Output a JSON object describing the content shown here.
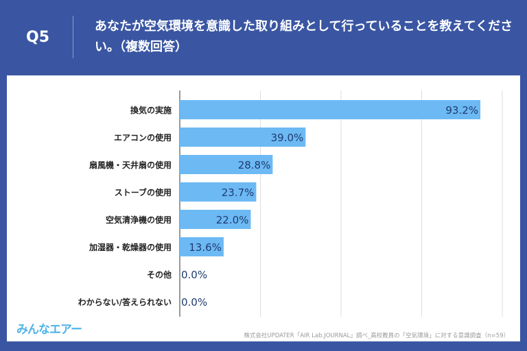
{
  "header": {
    "q": "Q5",
    "title": "あなたが空気環境を意識した取り組みとして行っていることを教えてください。（複数回答）"
  },
  "footer": {
    "logo": "みんなエアー",
    "source": "株式会社UPDATER「AIR Lab.JOURNAL」調べ_高校教員の「空気環境」に対する意識調査（n=59）"
  },
  "colors": {
    "bar": "#6cb9f4",
    "bg": "#3a56a3"
  },
  "chart_data": {
    "type": "bar",
    "orientation": "horizontal",
    "xlim": [
      0,
      100
    ],
    "grid": true,
    "categories": [
      "換気の実施",
      "エアコンの使用",
      "扇風機・天井扇の使用",
      "ストーブの使用",
      "空気清浄機の使用",
      "加湿器・乾燥器の使用",
      "その他",
      "わからない/答えられない"
    ],
    "values": [
      93.2,
      39.0,
      28.8,
      23.7,
      22.0,
      13.6,
      0.0,
      0.0
    ]
  }
}
